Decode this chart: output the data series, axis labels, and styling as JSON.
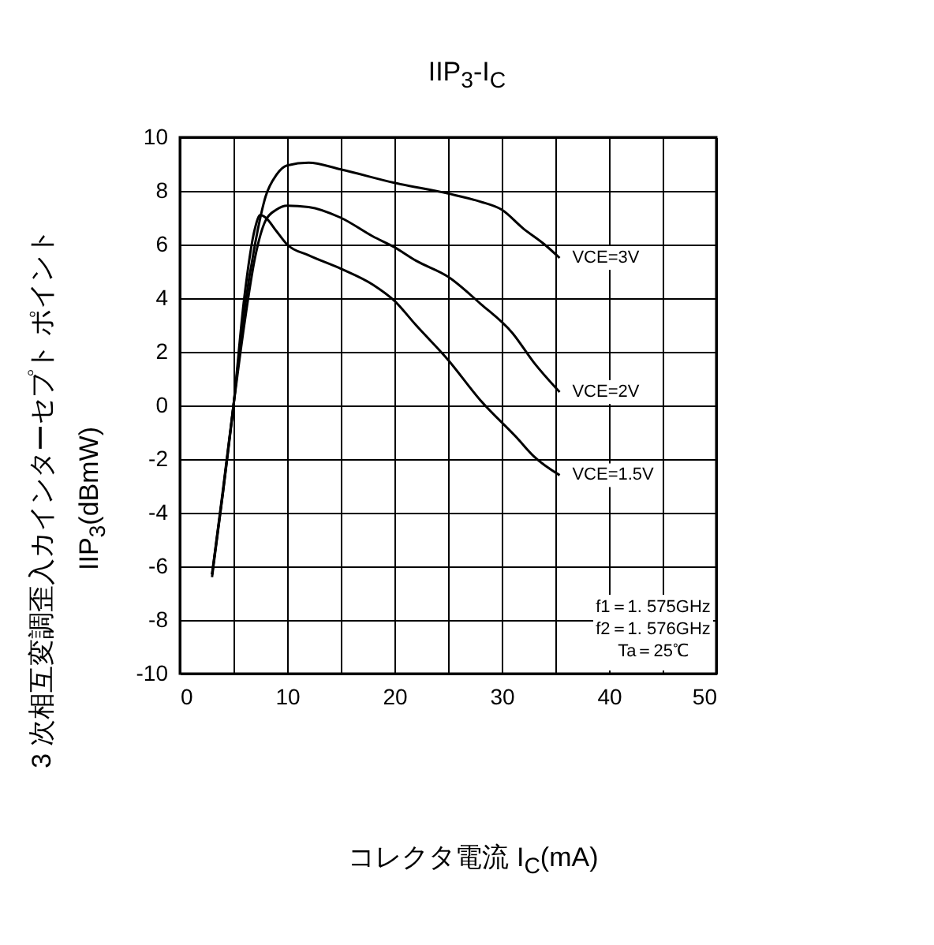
{
  "chart_data": {
    "type": "line",
    "title": "IIP$_{3}$-I$_{C}$",
    "xlabel": "コレクタ電流 I$_{C}$(mA)",
    "ylabel": "3 次相互変調歪入カインターセプト ポイント IIP$_{3}$(dBmW)",
    "xlim": [
      0,
      50
    ],
    "xticks": [
      0,
      {
        "value": 5,
        "label": null
      },
      10,
      {
        "value": 15,
        "label": null
      },
      20,
      {
        "value": 25,
        "label": null
      },
      30,
      {
        "value": 35,
        "label": null
      },
      40,
      {
        "value": 45,
        "label": null
      },
      50
    ],
    "ylim": [
      -10,
      10
    ],
    "yticks": [
      -10,
      -8,
      -6,
      -4,
      -2,
      0,
      2,
      4,
      6,
      8,
      10
    ],
    "grid": true,
    "legend": false,
    "marker": "none",
    "line_style": "solid",
    "annotations": [
      "f1＝1. 575GHz",
      "f2＝1. 576GHz",
      "Ta＝25℃"
    ],
    "series": [
      {
        "name": "VCE=3V",
        "color": "#000000",
        "x": [
          3,
          4,
          5,
          6,
          7,
          8,
          9,
          10,
          12,
          15,
          20,
          25,
          28,
          30,
          32,
          34,
          35.4
        ],
        "values": [
          -6.3,
          -3.3,
          0,
          3.5,
          6,
          7.8,
          8.6,
          8.95,
          9.05,
          8.8,
          8.3,
          7.9,
          7.6,
          7.3,
          6.6,
          6.0,
          5.5
        ]
      },
      {
        "name": "VCE=2V",
        "color": "#000000",
        "x": [
          3,
          4,
          5,
          6,
          7,
          8,
          9,
          10,
          12,
          15,
          18,
          20,
          22,
          25,
          28,
          31,
          33,
          35.4
        ],
        "values": [
          -6.3,
          -3.2,
          0,
          3,
          5.5,
          6.9,
          7.3,
          7.45,
          7.4,
          7.0,
          6.3,
          5.9,
          5.4,
          4.8,
          3.8,
          2.7,
          1.6,
          0.5
        ]
      },
      {
        "name": "VCE=1.5V",
        "color": "#000000",
        "x": [
          3,
          4,
          5,
          6,
          7,
          7.5,
          8,
          9,
          10,
          12,
          15,
          18,
          20,
          22,
          25,
          28,
          31.4,
          33,
          35.4
        ],
        "values": [
          -6.4,
          -3.3,
          0,
          4,
          6.6,
          7.1,
          7.0,
          6.5,
          6.0,
          5.6,
          5.1,
          4.5,
          3.9,
          3.0,
          1.7,
          0.2,
          -1.2,
          -1.9,
          -2.6
        ]
      }
    ]
  }
}
